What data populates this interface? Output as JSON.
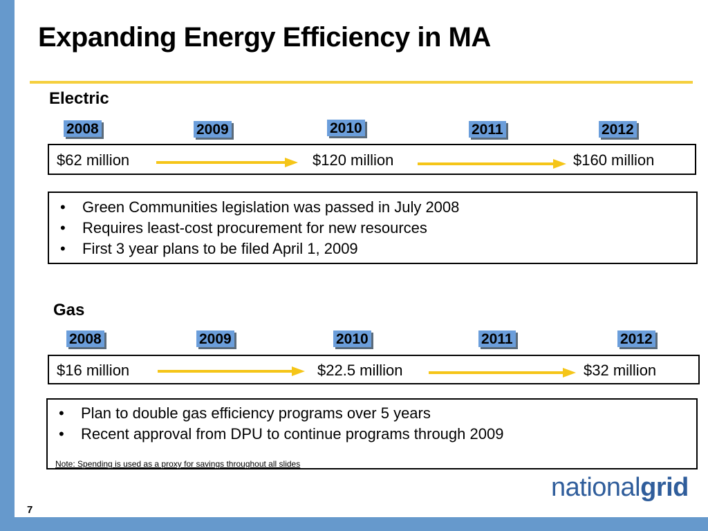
{
  "title": "Expanding Energy Efficiency in MA",
  "page_number": "7",
  "logo": {
    "regular": "national",
    "bold": "grid"
  },
  "electric": {
    "label": "Electric",
    "years": [
      "2008",
      "2009",
      "2010",
      "2011",
      "2012"
    ],
    "amounts": [
      "$62 million",
      "$120 million",
      "$160 million"
    ],
    "bullets": [
      "Green Communities legislation was passed in July 2008",
      "Requires least-cost procurement for new resources",
      "First 3 year plans to be filed April 1, 2009"
    ]
  },
  "gas": {
    "label": "Gas",
    "years": [
      "2008",
      "2009",
      "2010",
      "2011",
      "2012"
    ],
    "amounts": [
      "$16 million",
      "$22.5 million",
      "$32 million"
    ],
    "bullets": [
      "Plan to double gas efficiency programs over 5 years",
      "Recent approval from DPU to continue programs through 2009"
    ],
    "note": "Note: Spending is used as a proxy for savings throughout all slides"
  },
  "colors": {
    "accent_blue": "#6699cc",
    "year_box": "#6b9edb",
    "arrow_yellow": "#f5c518",
    "rule_yellow": "#f5cf3e",
    "logo_blue": "#2f5d9b"
  }
}
